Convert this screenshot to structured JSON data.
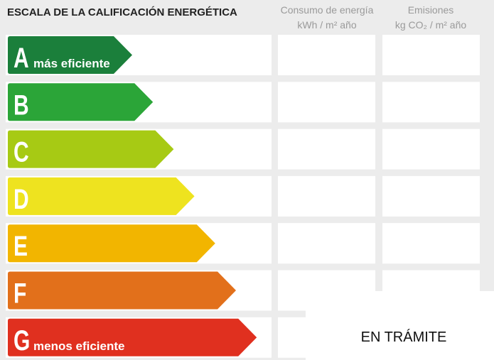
{
  "header": {
    "title": "ESCALA DE LA CALIFICACIÓN ENERGÉTICA",
    "columns": [
      {
        "line1": "Consumo de energía",
        "line2": "kWh / m² año"
      },
      {
        "line1": "Emisiones",
        "line2": "kg CO₂ / m² año"
      }
    ]
  },
  "rows": [
    {
      "letter": "A",
      "label": "más eficiente"
    },
    {
      "letter": "B"
    },
    {
      "letter": "C"
    },
    {
      "letter": "D"
    },
    {
      "letter": "E"
    },
    {
      "letter": "F"
    },
    {
      "letter": "G",
      "label": "menos eficiente"
    }
  ],
  "status": "EN TRÁMITE"
}
